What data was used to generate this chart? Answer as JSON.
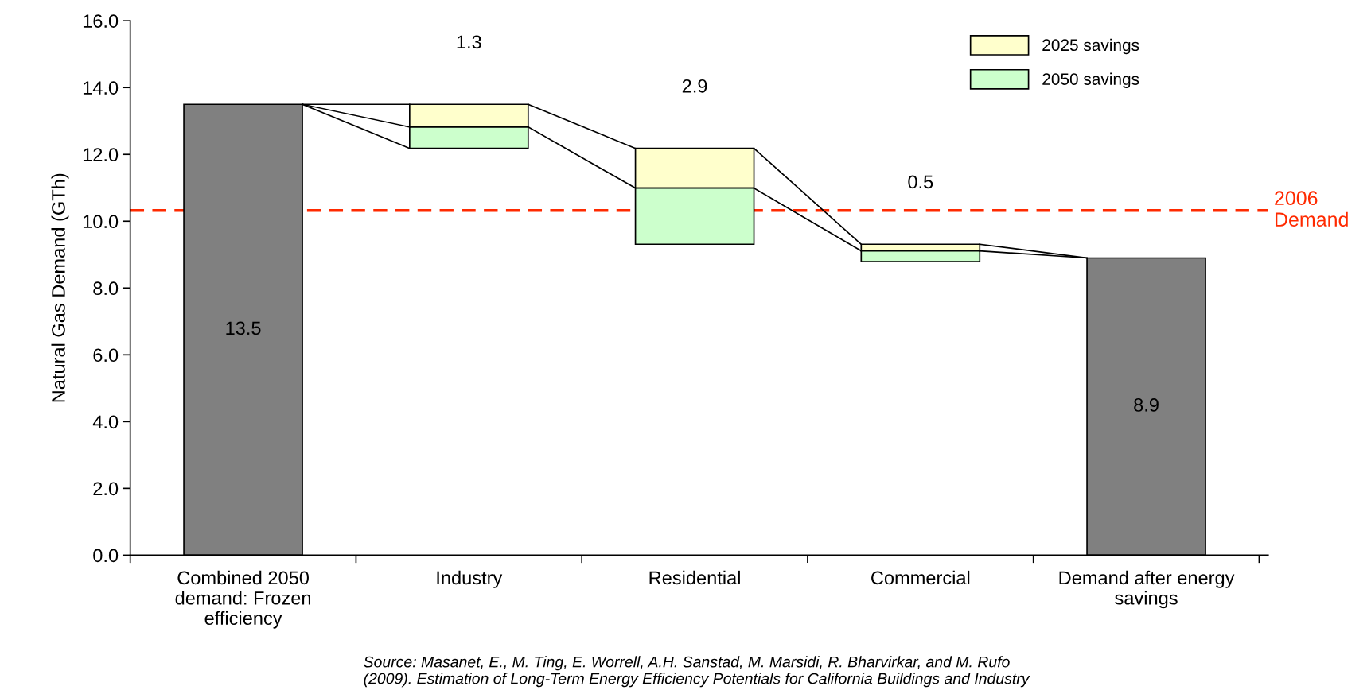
{
  "chart_data": {
    "type": "bar",
    "ylabel": "Natural Gas Demand (GTh)",
    "categories": [
      "Combined 2050\ndemand: Frozen\nefficiency",
      "Industry",
      "Residential",
      "Commercial",
      "Demand after energy\nsavings"
    ],
    "series": [
      {
        "color": "#808080",
        "values": [
          13.5,
          null,
          null,
          null,
          8.9
        ],
        "value_labels": [
          "13.5",
          null,
          null,
          null,
          "8.9"
        ]
      },
      {
        "name": "2025 savings",
        "color": "#ffffcc",
        "base": [
          null,
          12.82,
          10.99,
          9.11,
          null
        ],
        "values": [
          null,
          0.68,
          1.19,
          0.2,
          null
        ]
      },
      {
        "name": "2050 savings",
        "color": "#ccffcc",
        "base": [
          null,
          12.18,
          9.31,
          8.79,
          null
        ],
        "values": [
          null,
          0.64,
          1.68,
          0.32,
          null
        ]
      }
    ],
    "ylim": [
      0,
      16
    ],
    "yticks": [
      {
        "value": 0,
        "label": "0.0"
      },
      {
        "value": 2,
        "label": "2.0"
      },
      {
        "value": 4,
        "label": "4.0"
      },
      {
        "value": 6,
        "label": "6.0"
      },
      {
        "value": 8,
        "label": "8.0"
      },
      {
        "value": 10,
        "label": "10.0"
      },
      {
        "value": 12,
        "label": "12.0"
      },
      {
        "value": 14,
        "label": "14.0"
      },
      {
        "value": 16,
        "label": "16.0"
      }
    ],
    "ref_lines": [
      {
        "axis": "y",
        "value": 10.32,
        "label": "2006\nDemand",
        "color": "#ff2a00",
        "line_style": "dashed"
      }
    ],
    "legend": "top right",
    "annotations": [
      "1.3",
      "2.9",
      "0.5",
      "Source: Masanet, E., M. Ting, E. Worrell, A.H. Sanstad, M. Marsidi, R. Bharvirkar, and M. Rufo\n(2009). Estimation of Long-Term Energy Efficiency Potentials for California Buildings and Industry"
    ]
  }
}
